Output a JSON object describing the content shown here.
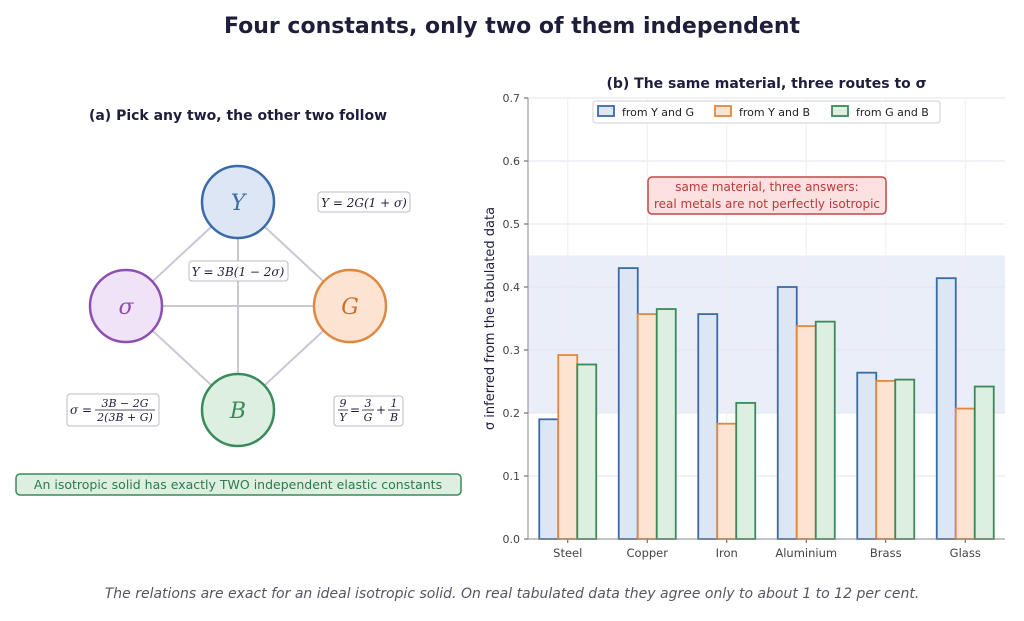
{
  "title": "Four constants, only two of them independent",
  "footnote": "The relations are exact for an ideal isotropic solid. On real tabulated data they agree only to about 1 to 12 per cent.",
  "left_panel": {
    "title": "(a) Pick any two, the other two follow",
    "nodes": {
      "Y": "Y",
      "G": "G",
      "sigma": "σ",
      "B": "B"
    },
    "relations": {
      "y_from_g": "Y = 2G(1 + σ)",
      "y_from_b": "Y = 3B(1 − 2σ)",
      "sigma_lhs": "σ =",
      "sigma_num": "3B − 2G",
      "sigma_den": "2(3B + G)",
      "inv_lhs_num": "9",
      "inv_lhs_den": "Y",
      "inv_eq": "=",
      "inv_t1_num": "3",
      "inv_t1_den": "G",
      "inv_plus": "+",
      "inv_t2_num": "1",
      "inv_t2_den": "B"
    },
    "note": "An isotropic solid has exactly TWO independent elastic constants",
    "colors": {
      "Y": "#3a6aa8",
      "G": "#e08840",
      "sigma": "#8e4fb0",
      "B": "#3a8a5a"
    }
  },
  "chart_data": {
    "type": "bar",
    "title": "(b) The same material, three routes to σ",
    "xlabel": "",
    "ylabel": "σ inferred from the tabulated data",
    "categories": [
      "Steel",
      "Copper",
      "Iron",
      "Aluminium",
      "Brass",
      "Glass"
    ],
    "series": [
      {
        "name": "from Y and G",
        "values": [
          0.19,
          0.43,
          0.357,
          0.4,
          0.264,
          0.414
        ],
        "color": "#3a6aa8",
        "fill": "#dce6f4"
      },
      {
        "name": "from Y and B",
        "values": [
          0.292,
          0.357,
          0.183,
          0.338,
          0.251,
          0.207
        ],
        "color": "#e08840",
        "fill": "#fde3d1"
      },
      {
        "name": "from G and B",
        "values": [
          0.277,
          0.365,
          0.216,
          0.345,
          0.253,
          0.242
        ],
        "color": "#3a8a5a",
        "fill": "#dcefe0"
      }
    ],
    "ylim": [
      0,
      0.7
    ],
    "yticks": [
      "0.0",
      "0.1",
      "0.2",
      "0.3",
      "0.4",
      "0.5",
      "0.6",
      "0.7"
    ],
    "band": [
      0.2,
      0.45
    ],
    "grid": true,
    "legend_position": "top",
    "annotation": [
      "same material, three answers:",
      "real metals are not perfectly isotropic"
    ]
  }
}
